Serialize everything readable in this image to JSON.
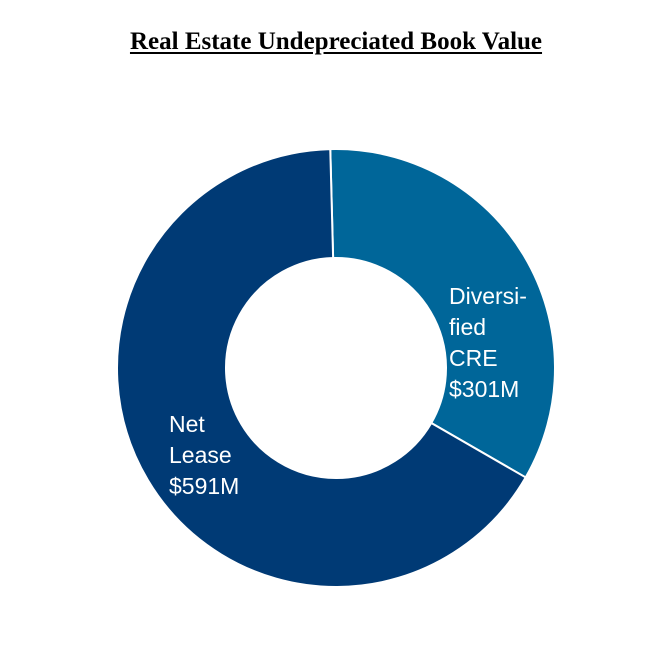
{
  "chart_data": {
    "type": "pie",
    "variant": "donut",
    "title": "Real Estate Undepreciated Book Value",
    "slices": [
      {
        "name": "Diversified CRE",
        "label_lines": [
          "Diversi-",
          "fied",
          "CRE",
          "$301M"
        ],
        "value": 301,
        "color": "#006699"
      },
      {
        "name": "Net Lease",
        "label_lines": [
          "Net",
          "Lease",
          "$591M"
        ],
        "value": 591,
        "color": "#003A75"
      }
    ],
    "legend": "none"
  }
}
